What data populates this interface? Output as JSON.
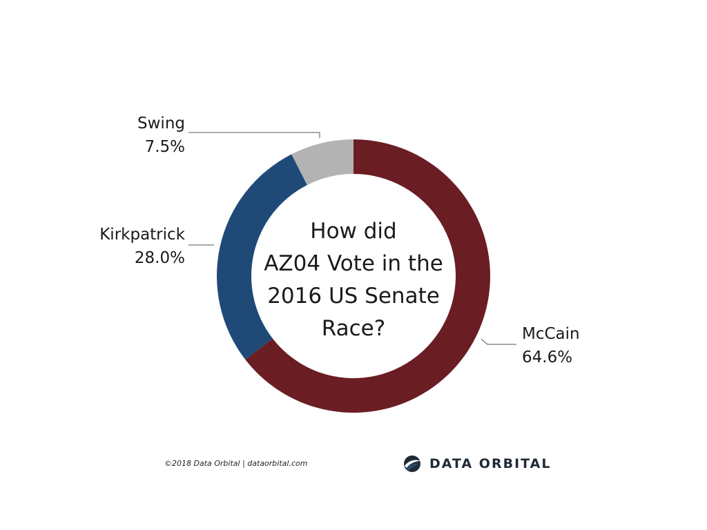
{
  "chart_data": {
    "type": "pie",
    "variant": "donut",
    "title_lines": [
      "How did",
      "AZ04 Vote in the",
      "2016 US Senate",
      "Race?"
    ],
    "slices": [
      {
        "name": "McCain",
        "value": 64.6,
        "label": "64.6%",
        "color": "#6b1d24"
      },
      {
        "name": "Kirkpatrick",
        "value": 28.0,
        "label": "28.0%",
        "color": "#1f4a78"
      },
      {
        "name": "Swing",
        "value": 7.5,
        "label": "7.5%",
        "color": "#b3b3b3"
      }
    ],
    "legend": "none"
  },
  "footer": {
    "credit": "©2018 Data Orbital | dataorbital.com",
    "brand_name": "DATA ORBITAL"
  },
  "colors": {
    "brand_dark": "#1f2a36",
    "brand_accent": "#2b4c6b"
  }
}
